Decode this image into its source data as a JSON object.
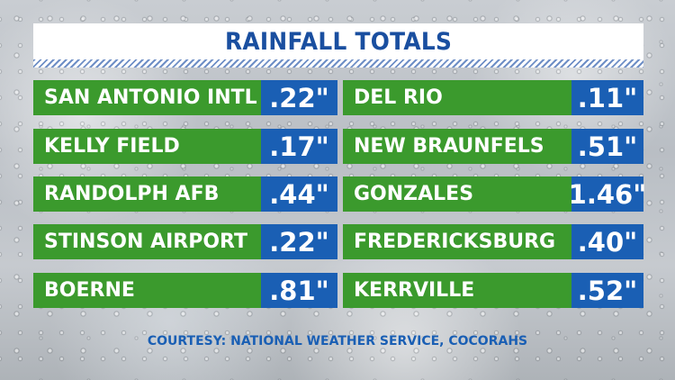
{
  "title": "RAINFALL TOTALS",
  "colors": {
    "title_text": "#1a4fa0",
    "name_bg": "#3b9a2d",
    "value_bg": "#1a5fb4"
  },
  "left": [
    {
      "name": "SAN ANTONIO INTL",
      "value": ".22\""
    },
    {
      "name": "KELLY FIELD",
      "value": ".17\""
    },
    {
      "name": "RANDOLPH AFB",
      "value": ".44\""
    },
    {
      "name": "STINSON AIRPORT",
      "value": ".22\""
    },
    {
      "name": "BOERNE",
      "value": ".81\""
    }
  ],
  "right": [
    {
      "name": "DEL RIO",
      "value": ".11\""
    },
    {
      "name": "NEW BRAUNFELS",
      "value": ".51\""
    },
    {
      "name": "GONZALES",
      "value": "1.46\""
    },
    {
      "name": "FREDERICKSBURG",
      "value": ".40\""
    },
    {
      "name": "KERRVILLE",
      "value": ".52\""
    }
  ],
  "courtesy": "COURTESY: NATIONAL WEATHER SERVICE, COCORAHS"
}
